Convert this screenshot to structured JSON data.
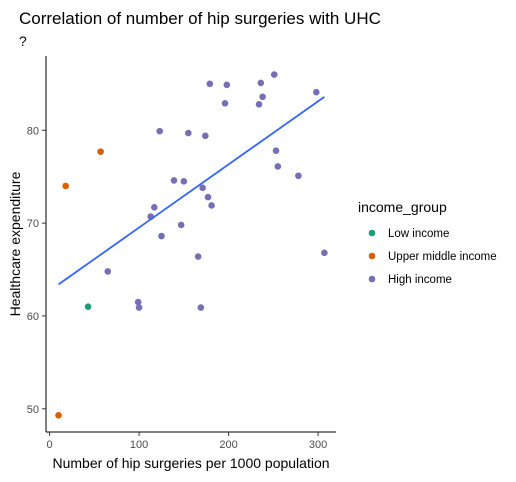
{
  "chart_data": {
    "type": "scatter",
    "title": "Correlation of number of hip surgeries with UHC",
    "subtitle": "?",
    "xlabel": "Number of hip surgeries per 1000 population",
    "ylabel": "Healthcare expenditure",
    "xlim": [
      -4,
      320
    ],
    "ylim": [
      47.5,
      88
    ],
    "x_ticks": [
      0,
      100,
      200,
      300
    ],
    "x_tick_labels": [
      "0",
      "100",
      "200",
      "300"
    ],
    "y_ticks": [
      50,
      60,
      70,
      80
    ],
    "y_tick_labels": [
      "50",
      "60",
      "70",
      "80"
    ],
    "grid": false,
    "legend": {
      "title": "income_group",
      "position": "right",
      "entries": [
        {
          "label": "Low income",
          "color": "#1B9E77"
        },
        {
          "label": "Upper middle income",
          "color": "#D95F02"
        },
        {
          "label": "High income",
          "color": "#7570B3"
        }
      ]
    },
    "series": [
      {
        "name": "Low income",
        "color": "#1B9E77",
        "points": [
          [
            43,
            61.0
          ]
        ]
      },
      {
        "name": "Upper middle income",
        "color": "#D95F02",
        "points": [
          [
            10,
            49.3
          ],
          [
            18,
            74.0
          ],
          [
            57,
            77.7
          ]
        ]
      },
      {
        "name": "High income",
        "color": "#7570B3",
        "points": [
          [
            65,
            64.8
          ],
          [
            99,
            61.5
          ],
          [
            100,
            60.9
          ],
          [
            113,
            70.7
          ],
          [
            117,
            71.7
          ],
          [
            123,
            79.9
          ],
          [
            125,
            68.6
          ],
          [
            139,
            74.6
          ],
          [
            147,
            69.8
          ],
          [
            150,
            74.5
          ],
          [
            155,
            79.7
          ],
          [
            166,
            66.4
          ],
          [
            169,
            60.9
          ],
          [
            171,
            73.8
          ],
          [
            174,
            79.4
          ],
          [
            177,
            72.8
          ],
          [
            179,
            85.0
          ],
          [
            181,
            71.9
          ],
          [
            196,
            82.9
          ],
          [
            198,
            84.9
          ],
          [
            234,
            82.8
          ],
          [
            236,
            85.1
          ],
          [
            238,
            83.6
          ],
          [
            251,
            86.0
          ],
          [
            253,
            77.8
          ],
          [
            255,
            76.1
          ],
          [
            278,
            75.1
          ],
          [
            298,
            84.1
          ],
          [
            307,
            66.8
          ]
        ]
      }
    ],
    "trend_line": {
      "color": "#3366FF",
      "from": [
        10,
        63.4
      ],
      "to": [
        307,
        83.6
      ]
    }
  }
}
